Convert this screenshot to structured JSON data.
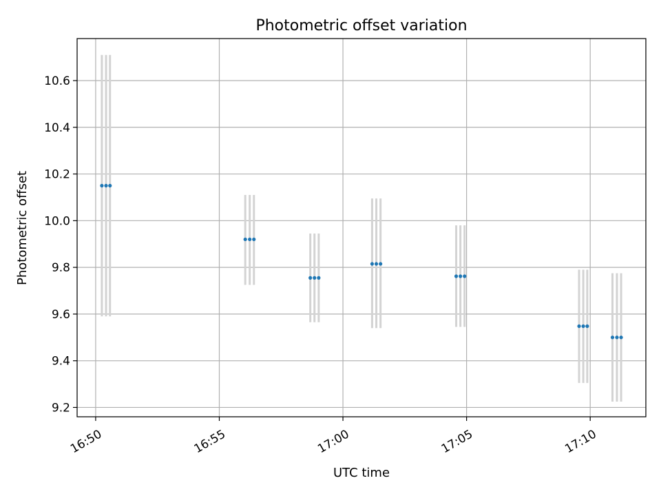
{
  "chart_data": {
    "type": "scatter",
    "title": "Photometric offset variation",
    "xlabel": "UTC time",
    "ylabel": "Photometric offset",
    "x_tick_labels": [
      "16:50",
      "16:55",
      "17:00",
      "17:05",
      "17:10"
    ],
    "x_ticks_minutes": [
      0,
      5,
      10,
      15,
      20
    ],
    "xlim_minutes": [
      -0.75,
      22.25
    ],
    "y_tick_labels": [
      "9.2",
      "9.4",
      "9.6",
      "9.8",
      "10.0",
      "10.2",
      "10.4",
      "10.6"
    ],
    "y_ticks": [
      9.2,
      9.4,
      9.6,
      9.8,
      10.0,
      10.2,
      10.4,
      10.6
    ],
    "ylim": [
      9.16,
      10.78
    ],
    "grid": true,
    "marker_color": "#1f77b4",
    "errorbar_color": "#d3d3d3",
    "points": [
      {
        "t": 0.25,
        "y": 10.15,
        "yerr_low": 9.59,
        "yerr_high": 10.71
      },
      {
        "t": 0.42,
        "y": 10.15,
        "yerr_low": 9.59,
        "yerr_high": 10.71
      },
      {
        "t": 0.58,
        "y": 10.15,
        "yerr_low": 9.59,
        "yerr_high": 10.71
      },
      {
        "t": 6.05,
        "y": 9.92,
        "yerr_low": 9.725,
        "yerr_high": 10.11
      },
      {
        "t": 6.23,
        "y": 9.92,
        "yerr_low": 9.725,
        "yerr_high": 10.11
      },
      {
        "t": 6.4,
        "y": 9.92,
        "yerr_low": 9.725,
        "yerr_high": 10.11
      },
      {
        "t": 8.68,
        "y": 9.755,
        "yerr_low": 9.565,
        "yerr_high": 9.945
      },
      {
        "t": 8.85,
        "y": 9.755,
        "yerr_low": 9.565,
        "yerr_high": 9.945
      },
      {
        "t": 9.02,
        "y": 9.755,
        "yerr_low": 9.565,
        "yerr_high": 9.945
      },
      {
        "t": 11.18,
        "y": 9.815,
        "yerr_low": 9.54,
        "yerr_high": 10.095
      },
      {
        "t": 11.35,
        "y": 9.815,
        "yerr_low": 9.54,
        "yerr_high": 10.095
      },
      {
        "t": 11.52,
        "y": 9.815,
        "yerr_low": 9.54,
        "yerr_high": 10.095
      },
      {
        "t": 14.58,
        "y": 9.762,
        "yerr_low": 9.545,
        "yerr_high": 9.98
      },
      {
        "t": 14.75,
        "y": 9.762,
        "yerr_low": 9.545,
        "yerr_high": 9.98
      },
      {
        "t": 14.92,
        "y": 9.762,
        "yerr_low": 9.545,
        "yerr_high": 9.98
      },
      {
        "t": 19.55,
        "y": 9.548,
        "yerr_low": 9.305,
        "yerr_high": 9.79
      },
      {
        "t": 19.72,
        "y": 9.548,
        "yerr_low": 9.305,
        "yerr_high": 9.79
      },
      {
        "t": 19.88,
        "y": 9.548,
        "yerr_low": 9.305,
        "yerr_high": 9.79
      },
      {
        "t": 20.9,
        "y": 9.5,
        "yerr_low": 9.225,
        "yerr_high": 9.775
      },
      {
        "t": 21.08,
        "y": 9.5,
        "yerr_low": 9.225,
        "yerr_high": 9.775
      },
      {
        "t": 21.25,
        "y": 9.5,
        "yerr_low": 9.225,
        "yerr_high": 9.775
      }
    ]
  }
}
